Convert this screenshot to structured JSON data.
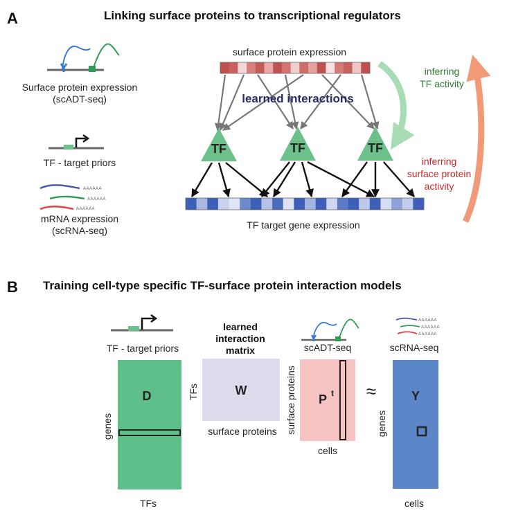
{
  "panel_a": {
    "letter": "A",
    "title": "Linking surface proteins to transcriptional regulators",
    "legend": {
      "surface_line1": "Surface protein expression",
      "surface_line2": "(scADT-seq)",
      "tf_priors": "TF - target priors",
      "polyA": "AAAAAA",
      "mrna_line1": "mRNA expression",
      "mrna_line2": "(scRNA-seq)"
    },
    "surface_expression_label": "surface protein expression",
    "learned_interactions": "learned interactions",
    "tf_node_label": "TF",
    "target_expression_label": "TF target gene expression",
    "inferring_tf_line1": "inferring",
    "inferring_tf_line2": "TF activity",
    "inferring_sp_line1": "inferring",
    "inferring_sp_line2": "surface protein",
    "inferring_sp_line3": "activity",
    "colors": {
      "surface_bar": "#c0504d",
      "target_bar": "#3d5fb8",
      "tf_node": "#6cc08a",
      "learned_text": "#2a2a6b",
      "tf_activity_text": "#2e7d32",
      "sp_activity_text": "#c62828",
      "tf_arrow": "#a8dcb4",
      "sp_arrow": "#f29a78"
    }
  },
  "panel_b": {
    "letter": "B",
    "title": "Training cell-type specific TF-surface protein interaction models",
    "tf_priors": "TF - target priors",
    "matrix_D": {
      "letter": "D",
      "row_label": "genes",
      "col_label": "TFs"
    },
    "matrix_W": {
      "header_line1": "learned",
      "header_line2": "interaction",
      "header_line3": "matrix",
      "letter": "W",
      "row_label": "TFs",
      "col_label": "surface proteins"
    },
    "matrix_P": {
      "header": "scADT-seq",
      "letter": "P",
      "superscript": "t",
      "row_label": "surface proteins",
      "col_label": "cells"
    },
    "approx": "≈",
    "matrix_Y": {
      "header": "scRNA-seq",
      "letter": "Y",
      "row_label": "genes",
      "col_label": "cells"
    },
    "colors": {
      "D": "#5fbf8a",
      "W": "#dcdcec",
      "P": "#f6c3c3",
      "Y": "#5b87c9"
    }
  }
}
